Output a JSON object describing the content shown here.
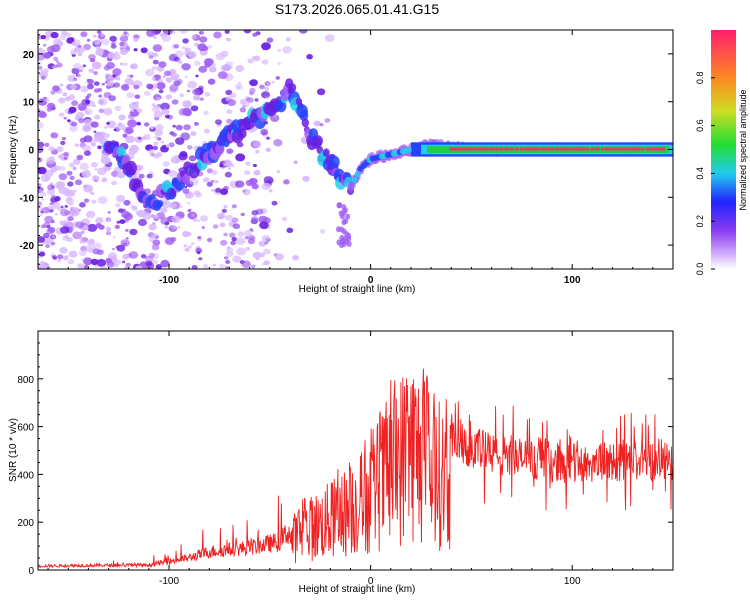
{
  "page_title": "S173.2026.065.01.41.G15",
  "colors": {
    "snr_line": "#ee2222",
    "ridge": "#22cc44",
    "ridge_core": "#ee3366",
    "blob_light": "#d9b8ff",
    "blob_mid": "#a15cf5",
    "blob_dark": "#6a1fe0",
    "hot_cyan": "#22ccee",
    "hot_blue": "#2244ff"
  },
  "chart_data": [
    {
      "type": "heatmap",
      "title": "S173.2026.065.01.41.G15",
      "xlabel": "Height of straight line (km)",
      "ylabel": "Frequency (Hz)",
      "xlim": [
        -165,
        150
      ],
      "ylim": [
        -25,
        25
      ],
      "x_ticks": [
        -100,
        0,
        100
      ],
      "y_ticks": [
        -20,
        -10,
        0,
        10,
        20
      ],
      "colorbar": {
        "label": "Normalized spectral amplitude",
        "range": [
          0,
          1
        ],
        "ticks": [
          0.0,
          0.2,
          0.4,
          0.6,
          0.8
        ],
        "colormap": [
          "#ffffff",
          "#b070ff",
          "#6a1fe0",
          "#2222ff",
          "#22ccee",
          "#22dd44",
          "#ccdd22",
          "#ff8822",
          "#ff2266"
        ]
      },
      "ridge": {
        "description_points_x": [
          -125,
          -110,
          -70,
          -55,
          -45,
          -40,
          -30,
          -20,
          -10,
          -5,
          0,
          10,
          20,
          30,
          50,
          100,
          150
        ],
        "description_points_y": [
          0,
          -12,
          3,
          7,
          10,
          13,
          3,
          -3,
          -8,
          -4,
          -2,
          -1,
          0,
          1,
          0,
          0,
          0
        ]
      }
    },
    {
      "type": "line",
      "xlabel": "Height of straight line (km)",
      "ylabel": "SNR (10 * v/v)",
      "xlim": [
        -165,
        150
      ],
      "ylim": [
        0,
        1000
      ],
      "x_ticks": [
        -100,
        0,
        100
      ],
      "y_ticks": [
        0,
        200,
        400,
        600,
        800
      ],
      "envelope_x": [
        -165,
        -110,
        -90,
        -80,
        -60,
        -45,
        -35,
        -20,
        -10,
        0,
        10,
        20,
        30,
        40,
        50,
        60,
        80,
        100,
        120,
        150
      ],
      "envelope_y": [
        20,
        25,
        60,
        90,
        110,
        140,
        260,
        350,
        420,
        520,
        700,
        860,
        700,
        620,
        560,
        520,
        500,
        480,
        490,
        500
      ]
    }
  ]
}
